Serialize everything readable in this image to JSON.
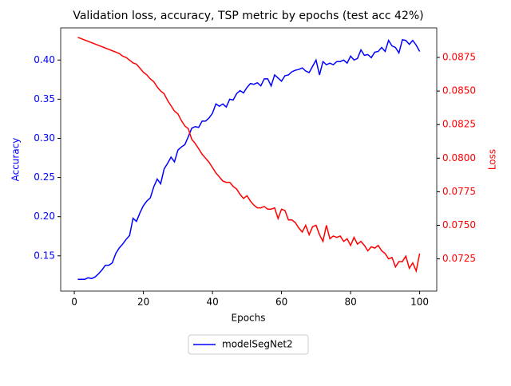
{
  "chart_data": {
    "type": "line",
    "title": "Validation loss, accuracy, TSP metric by epochs (test acc 42%)",
    "xlabel": "Epochs",
    "ylabel": "Accuracy",
    "y2label": "Loss",
    "ylabel_color": "#0000ff",
    "y2label_color": "#ff0000",
    "x": [
      1,
      2,
      3,
      4,
      5,
      6,
      7,
      8,
      9,
      10,
      11,
      12,
      13,
      14,
      15,
      16,
      17,
      18,
      19,
      20,
      21,
      22,
      23,
      24,
      25,
      26,
      27,
      28,
      29,
      30,
      31,
      32,
      33,
      34,
      35,
      36,
      37,
      38,
      39,
      40,
      41,
      42,
      43,
      44,
      45,
      46,
      47,
      48,
      49,
      50,
      51,
      52,
      53,
      54,
      55,
      56,
      57,
      58,
      59,
      60,
      61,
      62,
      63,
      64,
      65,
      66,
      67,
      68,
      69,
      70,
      71,
      72,
      73,
      74,
      75,
      76,
      77,
      78,
      79,
      80,
      81,
      82,
      83,
      84,
      85,
      86,
      87,
      88,
      89,
      90,
      91,
      92,
      93,
      94,
      95,
      96,
      97,
      98,
      99,
      100
    ],
    "series": [
      {
        "name": "modelSegNet2",
        "color": "#0000ff",
        "axis": "y",
        "values": [
          0.12,
          0.12,
          0.12,
          0.122,
          0.121,
          0.123,
          0.127,
          0.132,
          0.138,
          0.138,
          0.141,
          0.153,
          0.16,
          0.165,
          0.171,
          0.176,
          0.198,
          0.194,
          0.205,
          0.214,
          0.22,
          0.224,
          0.238,
          0.248,
          0.242,
          0.261,
          0.268,
          0.276,
          0.27,
          0.285,
          0.289,
          0.292,
          0.302,
          0.313,
          0.315,
          0.314,
          0.322,
          0.322,
          0.326,
          0.332,
          0.344,
          0.341,
          0.344,
          0.34,
          0.35,
          0.349,
          0.357,
          0.361,
          0.358,
          0.365,
          0.37,
          0.369,
          0.371,
          0.367,
          0.376,
          0.376,
          0.367,
          0.381,
          0.377,
          0.373,
          0.38,
          0.381,
          0.385,
          0.387,
          0.388,
          0.39,
          0.386,
          0.384,
          0.392,
          0.4,
          0.381,
          0.398,
          0.394,
          0.396,
          0.394,
          0.398,
          0.398,
          0.4,
          0.396,
          0.405,
          0.4,
          0.402,
          0.413,
          0.406,
          0.407,
          0.403,
          0.41,
          0.411,
          0.416,
          0.411,
          0.425,
          0.418,
          0.416,
          0.409,
          0.426,
          0.425,
          0.42,
          0.425,
          0.419,
          0.411
        ]
      },
      {
        "color": "#ff0000",
        "axis": "y2",
        "values": [
          0.089,
          0.0889,
          0.0888,
          0.0887,
          0.0886,
          0.0885,
          0.0884,
          0.0883,
          0.0882,
          0.0881,
          0.088,
          0.0879,
          0.0878,
          0.0876,
          0.0875,
          0.0873,
          0.0871,
          0.087,
          0.0867,
          0.0864,
          0.0862,
          0.0859,
          0.0857,
          0.0853,
          0.085,
          0.0848,
          0.0843,
          0.0839,
          0.0835,
          0.0833,
          0.0828,
          0.0824,
          0.0822,
          0.0814,
          0.0811,
          0.0807,
          0.0803,
          0.08,
          0.0797,
          0.0793,
          0.0789,
          0.0786,
          0.0783,
          0.0782,
          0.0782,
          0.0779,
          0.0777,
          0.0773,
          0.077,
          0.0772,
          0.0768,
          0.0765,
          0.0763,
          0.0763,
          0.0764,
          0.0762,
          0.0762,
          0.0763,
          0.0755,
          0.0762,
          0.0761,
          0.0754,
          0.0754,
          0.0752,
          0.0748,
          0.0745,
          0.075,
          0.0743,
          0.0749,
          0.075,
          0.0743,
          0.0738,
          0.075,
          0.074,
          0.0742,
          0.0741,
          0.0742,
          0.0738,
          0.074,
          0.0735,
          0.0741,
          0.0736,
          0.0738,
          0.0735,
          0.0731,
          0.0734,
          0.0733,
          0.0735,
          0.0731,
          0.0729,
          0.0725,
          0.0726,
          0.0719,
          0.0723,
          0.0723,
          0.0727,
          0.0718,
          0.0722,
          0.0716,
          0.0729
        ]
      }
    ],
    "xlim": [
      -3.95,
      104.95
    ],
    "xticks": [
      0,
      20,
      40,
      60,
      80,
      100
    ],
    "ylim": [
      0.105,
      0.441
    ],
    "yticks": [
      0.15,
      {
        "value": 0.2,
        "label": "0.20"
      },
      0.25,
      {
        "value": 0.3,
        "label": "0.30"
      },
      0.35,
      {
        "value": 0.4,
        "label": "0.40"
      }
    ],
    "y2lim": [
      0.0701,
      0.0897
    ],
    "y2ticks": [
      0.0725,
      {
        "value": 0.075,
        "label": "0.0750"
      },
      0.0775,
      {
        "value": 0.08,
        "label": "0.0800"
      },
      0.0825,
      {
        "value": 0.085,
        "label": "0.0850"
      },
      0.0875
    ],
    "grid": false,
    "legend": "lower center"
  }
}
